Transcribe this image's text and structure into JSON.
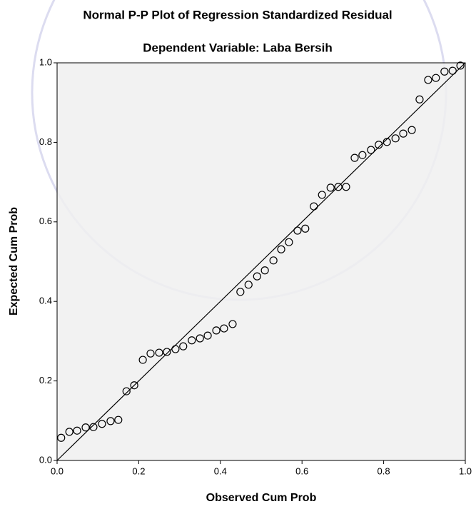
{
  "chart_data": {
    "type": "scatter",
    "title": "Normal P-P Plot of Regression Standardized Residual",
    "subtitle": "Dependent Variable: Laba Bersih",
    "xlabel": "Observed Cum Prob",
    "ylabel": "Expected Cum Prob",
    "x": [
      0.01,
      0.03,
      0.049,
      0.07,
      0.089,
      0.11,
      0.131,
      0.15,
      0.17,
      0.189,
      0.21,
      0.229,
      0.25,
      0.269,
      0.29,
      0.309,
      0.33,
      0.35,
      0.369,
      0.39,
      0.409,
      0.43,
      0.449,
      0.469,
      0.49,
      0.509,
      0.53,
      0.549,
      0.568,
      0.589,
      0.608,
      0.629,
      0.649,
      0.67,
      0.689,
      0.708,
      0.729,
      0.748,
      0.769,
      0.788,
      0.808,
      0.829,
      0.848,
      0.869,
      0.888,
      0.909,
      0.928,
      0.949,
      0.969,
      0.988
    ],
    "values": [
      0.057,
      0.072,
      0.075,
      0.083,
      0.084,
      0.092,
      0.099,
      0.102,
      0.174,
      0.189,
      0.253,
      0.269,
      0.271,
      0.273,
      0.28,
      0.287,
      0.302,
      0.307,
      0.314,
      0.327,
      0.332,
      0.343,
      0.424,
      0.442,
      0.463,
      0.478,
      0.503,
      0.531,
      0.549,
      0.578,
      0.583,
      0.639,
      0.668,
      0.686,
      0.688,
      0.688,
      0.761,
      0.768,
      0.781,
      0.794,
      0.801,
      0.81,
      0.822,
      0.831,
      0.908,
      0.957,
      0.962,
      0.978,
      0.98,
      0.993
    ],
    "color": "#000000",
    "xlim": [
      0,
      1
    ],
    "ylim": [
      0,
      1
    ],
    "xticks": [
      {
        "value": 0,
        "label": "0.0"
      },
      0.2,
      0.4,
      0.6,
      0.8,
      {
        "value": 1,
        "label": "1.0"
      }
    ],
    "yticks": [
      {
        "value": 0,
        "label": "0.0"
      },
      0.2,
      0.4,
      0.6,
      0.8,
      {
        "value": 1,
        "label": "1.0"
      }
    ],
    "reference_line": true,
    "plot_background": "#f0f0f0"
  }
}
